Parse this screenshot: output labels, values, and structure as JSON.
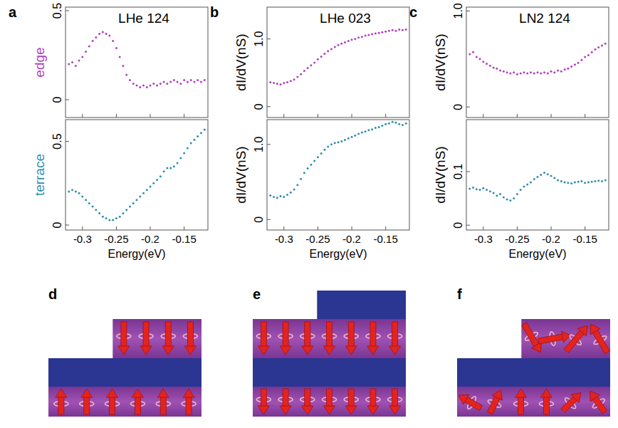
{
  "chart_data": [
    {
      "type": "scatter",
      "panel": "a",
      "title": "LHe 124",
      "x_label": "Energy(eV)",
      "x": [
        -0.32,
        -0.315,
        -0.31,
        -0.305,
        -0.3,
        -0.295,
        -0.29,
        -0.285,
        -0.28,
        -0.275,
        -0.27,
        -0.265,
        -0.26,
        -0.255,
        -0.25,
        -0.245,
        -0.24,
        -0.235,
        -0.23,
        -0.225,
        -0.22,
        -0.215,
        -0.21,
        -0.205,
        -0.2,
        -0.195,
        -0.19,
        -0.185,
        -0.18,
        -0.175,
        -0.17,
        -0.165,
        -0.16,
        -0.155,
        -0.15,
        -0.145,
        -0.14,
        -0.135,
        -0.13,
        -0.125,
        -0.12
      ],
      "xlim": [
        -0.325,
        -0.115
      ],
      "xticks": [
        -0.3,
        -0.25,
        -0.2,
        -0.15
      ],
      "rows": [
        {
          "y_label": "edge",
          "color": "#b040c0",
          "ylim": [
            -0.1,
            0.52
          ],
          "yticks": [
            0,
            0.5
          ],
          "values": [
            0.2,
            0.21,
            0.19,
            0.22,
            0.24,
            0.27,
            0.3,
            0.33,
            0.35,
            0.37,
            0.38,
            0.37,
            0.36,
            0.33,
            0.29,
            0.24,
            0.19,
            0.14,
            0.11,
            0.09,
            0.08,
            0.07,
            0.08,
            0.07,
            0.08,
            0.09,
            0.08,
            0.09,
            0.1,
            0.09,
            0.1,
            0.11,
            0.1,
            0.09,
            0.11,
            0.1,
            0.11,
            0.1,
            0.11,
            0.1,
            0.11
          ]
        },
        {
          "y_label": "terrace",
          "color": "#2f8fb0",
          "ylim": [
            -0.03,
            0.63
          ],
          "yticks": [
            0,
            0.5
          ],
          "values": [
            0.2,
            0.21,
            0.2,
            0.19,
            0.17,
            0.15,
            0.13,
            0.11,
            0.09,
            0.07,
            0.05,
            0.04,
            0.03,
            0.03,
            0.04,
            0.05,
            0.07,
            0.09,
            0.11,
            0.13,
            0.15,
            0.17,
            0.19,
            0.21,
            0.23,
            0.25,
            0.27,
            0.29,
            0.32,
            0.34,
            0.34,
            0.35,
            0.37,
            0.4,
            0.43,
            0.46,
            0.49,
            0.51,
            0.53,
            0.55,
            0.57
          ]
        }
      ]
    },
    {
      "type": "scatter",
      "panel": "b",
      "title": "LHe 023",
      "x_label": "Energy(eV)",
      "x": [
        -0.32,
        -0.315,
        -0.31,
        -0.305,
        -0.3,
        -0.295,
        -0.29,
        -0.285,
        -0.28,
        -0.275,
        -0.27,
        -0.265,
        -0.26,
        -0.255,
        -0.25,
        -0.245,
        -0.24,
        -0.235,
        -0.23,
        -0.225,
        -0.22,
        -0.215,
        -0.21,
        -0.205,
        -0.2,
        -0.195,
        -0.19,
        -0.185,
        -0.18,
        -0.175,
        -0.17,
        -0.165,
        -0.16,
        -0.155,
        -0.15,
        -0.145,
        -0.14,
        -0.135,
        -0.13,
        -0.125,
        -0.12
      ],
      "xlim": [
        -0.325,
        -0.115
      ],
      "xticks": [
        -0.3,
        -0.25,
        -0.2,
        -0.15
      ],
      "rows": [
        {
          "y_label": "dI/dV(nS)",
          "color": "#b040c0",
          "ylim": [
            -0.16,
            1.47
          ],
          "yticks": [
            0,
            {
              "value": 1,
              "label": "1.0"
            }
          ],
          "values": [
            0.36,
            0.35,
            0.34,
            0.33,
            0.35,
            0.36,
            0.38,
            0.4,
            0.44,
            0.48,
            0.53,
            0.57,
            0.61,
            0.65,
            0.7,
            0.74,
            0.78,
            0.82,
            0.85,
            0.88,
            0.91,
            0.93,
            0.95,
            0.97,
            0.99,
            1.0,
            1.02,
            1.03,
            1.05,
            1.06,
            1.07,
            1.08,
            1.09,
            1.1,
            1.11,
            1.12,
            1.13,
            1.12,
            1.14,
            1.13,
            1.14
          ]
        },
        {
          "y_label": "dI/dV(nS)",
          "color": "#2f8fb0",
          "ylim": [
            -0.14,
            1.33
          ],
          "yticks": [
            0,
            {
              "value": 1,
              "label": "1.0"
            }
          ],
          "values": [
            0.32,
            0.3,
            0.29,
            0.31,
            0.3,
            0.33,
            0.36,
            0.4,
            0.46,
            0.54,
            0.62,
            0.68,
            0.73,
            0.78,
            0.83,
            0.88,
            0.93,
            0.97,
            1.0,
            1.02,
            1.03,
            1.04,
            1.06,
            1.08,
            1.1,
            1.12,
            1.14,
            1.16,
            1.17,
            1.19,
            1.2,
            1.22,
            1.23,
            1.25,
            1.27,
            1.28,
            1.3,
            1.29,
            1.27,
            1.26,
            1.28
          ]
        }
      ]
    },
    {
      "type": "scatter",
      "panel": "c",
      "title": "LN2 124",
      "x_label": "Energy(eV)",
      "x": [
        -0.32,
        -0.315,
        -0.31,
        -0.305,
        -0.3,
        -0.295,
        -0.29,
        -0.285,
        -0.28,
        -0.275,
        -0.27,
        -0.265,
        -0.26,
        -0.255,
        -0.25,
        -0.245,
        -0.24,
        -0.235,
        -0.23,
        -0.225,
        -0.22,
        -0.215,
        -0.21,
        -0.205,
        -0.2,
        -0.195,
        -0.19,
        -0.185,
        -0.18,
        -0.175,
        -0.17,
        -0.165,
        -0.16,
        -0.155,
        -0.15,
        -0.145,
        -0.14,
        -0.135,
        -0.13,
        -0.125,
        -0.12
      ],
      "xlim": [
        -0.325,
        -0.115
      ],
      "xticks": [
        -0.3,
        -0.25,
        -0.2,
        -0.15
      ],
      "rows": [
        {
          "y_label": "dI/dV(nS)",
          "color": "#b040c0",
          "ylim": [
            -0.11,
            1.04
          ],
          "yticks": [
            0,
            {
              "value": 1,
              "label": "1.0"
            }
          ],
          "values": [
            0.55,
            0.57,
            0.52,
            0.5,
            0.47,
            0.45,
            0.43,
            0.41,
            0.4,
            0.38,
            0.37,
            0.36,
            0.35,
            0.36,
            0.34,
            0.35,
            0.36,
            0.35,
            0.36,
            0.35,
            0.36,
            0.35,
            0.36,
            0.35,
            0.37,
            0.36,
            0.38,
            0.37,
            0.39,
            0.4,
            0.42,
            0.44,
            0.46,
            0.49,
            0.52,
            0.54,
            0.57,
            0.6,
            0.62,
            0.64,
            0.66
          ]
        },
        {
          "y_label": "dI/dV(nS)",
          "color": "#2f8fb0",
          "ylim": [
            -0.009,
            0.197
          ],
          "yticks": [
            0,
            0.1
          ],
          "values": [
            0.068,
            0.07,
            0.067,
            0.066,
            0.069,
            0.066,
            0.063,
            0.06,
            0.055,
            0.058,
            0.052,
            0.048,
            0.046,
            0.05,
            0.058,
            0.066,
            0.072,
            0.076,
            0.08,
            0.086,
            0.09,
            0.094,
            0.098,
            0.095,
            0.092,
            0.088,
            0.084,
            0.082,
            0.08,
            0.079,
            0.078,
            0.08,
            0.081,
            0.082,
            0.079,
            0.08,
            0.081,
            0.082,
            0.083,
            0.082,
            0.084
          ]
        }
      ]
    }
  ],
  "diagrams": {
    "labels": [
      "d",
      "e",
      "f"
    ]
  }
}
